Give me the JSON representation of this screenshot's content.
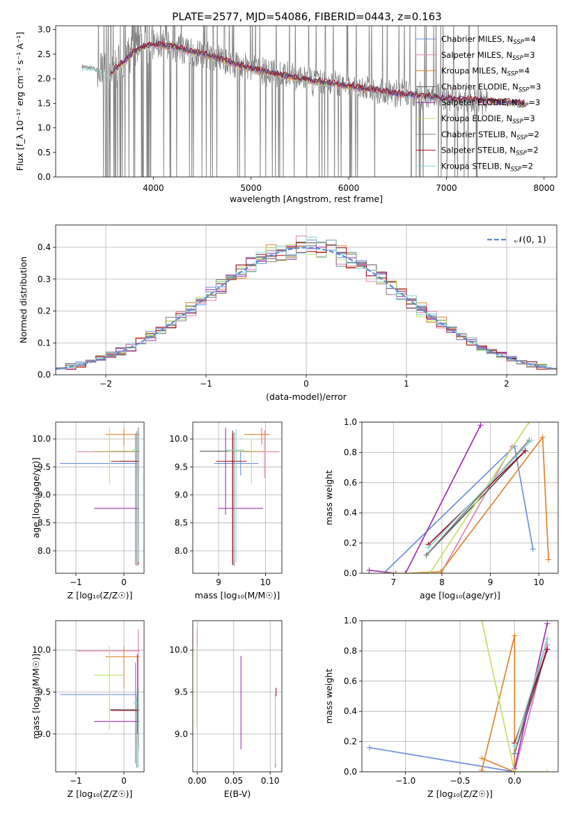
{
  "title": "PLATE=2577, MJD=54086, FIBERID=0443, z=0.163",
  "colors": {
    "chabrier_miles": "#6a8fe0",
    "salpeter_miles": "#e47fb3",
    "kroupa_miles": "#e1842a",
    "chabrier_elodie": "#555555",
    "salpeter_elodie": "#9d2fb0",
    "kroupa_elodie": "#bfe163",
    "chabrier_stelib": "#808080",
    "salpeter_stelib": "#a01020",
    "kroupa_stelib": "#86d4d0",
    "gaussian": "#5b8bd6",
    "data": "#808080",
    "grid": "#b0b0b0"
  },
  "chart_data": [
    {
      "id": "spectrum",
      "type": "line",
      "xlabel": "wavelength [Angstrom, rest frame]",
      "ylabel": "Flux [f_λ 10⁻¹⁷ erg cm⁻² s⁻¹ A⁻¹]",
      "xlim": [
        3000,
        8130
      ],
      "ylim": [
        0,
        3.08
      ],
      "xticks": [
        "4000",
        "5000",
        "6000",
        "7000",
        "8000"
      ],
      "yticks": [
        "0.0",
        "0.5",
        "1.0",
        "1.5",
        "2.0",
        "2.5",
        "3.0"
      ],
      "grid": false,
      "legend_position": "top-right",
      "legend": [
        {
          "label": "Chabrier MILES, N",
          "sub": "SSP",
          "tail": "=4",
          "color_key": "chabrier_miles"
        },
        {
          "label": "Salpeter MILES, N",
          "sub": "SSP",
          "tail": "=3",
          "color_key": "salpeter_miles"
        },
        {
          "label": "Kroupa MILES, N",
          "sub": "SSP",
          "tail": "=4",
          "color_key": "kroupa_miles"
        },
        {
          "label": "Chabrier ELODIE, N",
          "sub": "SSP",
          "tail": "=3",
          "color_key": "chabrier_elodie"
        },
        {
          "label": "Salpeter ELODIE, N",
          "sub": "SSP",
          "tail": "=3",
          "color_key": "salpeter_elodie"
        },
        {
          "label": "Kroupa ELODIE, N",
          "sub": "SSP",
          "tail": "=3",
          "color_key": "kroupa_elodie"
        },
        {
          "label": "Chabrier STELIB, N",
          "sub": "SSP",
          "tail": "=2",
          "color_key": "chabrier_stelib"
        },
        {
          "label": "Salpeter STELIB, N",
          "sub": "SSP",
          "tail": "=2",
          "color_key": "salpeter_stelib"
        },
        {
          "label": "Kroupa STELIB, N",
          "sub": "SSP",
          "tail": "=2",
          "color_key": "kroupa_stelib"
        }
      ],
      "continuum": {
        "x": [
          3270,
          3400,
          3550,
          3700,
          3800,
          3900,
          4000,
          4200,
          4400,
          4600,
          5000,
          5500,
          6000,
          6500,
          7000,
          7400,
          7800
        ],
        "y": [
          2.25,
          2.2,
          2.1,
          2.35,
          2.55,
          2.65,
          2.7,
          2.65,
          2.55,
          2.45,
          2.2,
          2.0,
          1.85,
          1.7,
          1.6,
          1.55,
          1.5
        ]
      },
      "noise_segment": [
        3430,
        7420
      ]
    },
    {
      "id": "residuals",
      "type": "line",
      "xlabel": "(data-model)/error",
      "ylabel": "Normed distribution",
      "xlim": [
        -2.5,
        2.5
      ],
      "ylim": [
        0,
        0.47
      ],
      "xticks": [
        "−2",
        "−1",
        "0",
        "1",
        "2"
      ],
      "xtick_values": [
        -2,
        -1,
        0,
        1,
        2
      ],
      "yticks": [
        "0.0",
        "0.1",
        "0.2",
        "0.3",
        "0.4"
      ],
      "ytick_values": [
        0,
        0.1,
        0.2,
        0.3,
        0.4
      ],
      "grid": true,
      "legend_position": "top-right",
      "legend": [
        {
          "label": "𝒩(0, 1)",
          "color_key": "gaussian"
        }
      ],
      "bin_width": 0.1
    },
    {
      "id": "age-vs-Z",
      "type": "scatter",
      "xlabel": "Z [log₁₀(Z/Z☉)]",
      "ylabel": "age  [log₁₀(age/yr)]",
      "xlim": [
        -1.42,
        0.42
      ],
      "ylim": [
        7.6,
        10.3
      ],
      "xticks": [
        "−1",
        "0"
      ],
      "xtick_values": [
        -1,
        0
      ],
      "yticks": [
        "8.0",
        "8.5",
        "9.0",
        "9.5",
        "10.0"
      ],
      "ytick_values": [
        8.0,
        8.5,
        9.0,
        9.5,
        10.0
      ],
      "grid": true
    },
    {
      "id": "age-vs-mass",
      "type": "scatter",
      "xlabel": "mass [log₁₀(M/M☉)]",
      "xlim": [
        8.45,
        10.35
      ],
      "ylim": [
        7.6,
        10.3
      ],
      "xticks": [
        "9",
        "10"
      ],
      "xtick_values": [
        9,
        10
      ],
      "yticks": [
        "8.0",
        "8.5",
        "9.0",
        "9.5",
        "10.0"
      ],
      "ytick_values": [
        8.0,
        8.5,
        9.0,
        9.5,
        10.0
      ],
      "grid": true
    },
    {
      "id": "massweight-vs-age",
      "type": "line",
      "xlabel": "age  [log₁₀(age/yr)]",
      "ylabel": "mass weight",
      "xlim": [
        6.35,
        10.4
      ],
      "ylim": [
        0,
        1
      ],
      "xticks": [
        "7",
        "8",
        "9",
        "10"
      ],
      "xtick_values": [
        7,
        8,
        9,
        10
      ],
      "yticks": [
        "0.0",
        "0.2",
        "0.4",
        "0.6",
        "0.8",
        "1.0"
      ],
      "ytick_values": [
        0,
        0.2,
        0.4,
        0.6,
        0.8,
        1.0
      ],
      "grid": true,
      "series": [
        {
          "color_key": "chabrier_miles",
          "x": [
            6.8,
            9.5,
            9.88
          ],
          "y": [
            0.0,
            0.84,
            0.16
          ]
        },
        {
          "color_key": "salpeter_miles",
          "x": [
            7.98,
            9.45
          ],
          "y": [
            0.0,
            0.84
          ]
        },
        {
          "color_key": "kroupa_miles",
          "x": [
            7.25,
            7.98,
            10.08,
            10.2
          ],
          "y": [
            0.0,
            0.01,
            0.9,
            0.09
          ]
        },
        {
          "color_key": "chabrier_elodie",
          "x": [
            7.68,
            9.72
          ],
          "y": [
            0.12,
            0.81
          ]
        },
        {
          "color_key": "salpeter_elodie",
          "x": [
            6.5,
            7.05,
            7.25,
            8.8
          ],
          "y": [
            0.02,
            0.0,
            0.0,
            0.98
          ]
        },
        {
          "color_key": "kroupa_elodie",
          "x": [
            6.8,
            7.75,
            9.8
          ],
          "y": [
            0.0,
            0.0,
            1.0
          ]
        },
        {
          "color_key": "chabrier_stelib",
          "x": [
            7.68,
            9.8
          ],
          "y": [
            0.12,
            0.88
          ]
        },
        {
          "color_key": "salpeter_stelib",
          "x": [
            7.72,
            9.72
          ],
          "y": [
            0.19,
            0.81
          ]
        },
        {
          "color_key": "kroupa_stelib",
          "x": [
            7.72,
            9.85
          ],
          "y": [
            0.17,
            0.88
          ]
        }
      ]
    },
    {
      "id": "mass-vs-Z",
      "type": "scatter",
      "xlabel": "Z [log₁₀(Z/Z☉)]",
      "ylabel": "mass [log₁₀(M/M☉)]",
      "xlim": [
        -1.42,
        0.42
      ],
      "ylim": [
        8.55,
        10.35
      ],
      "xticks": [
        "−1",
        "0"
      ],
      "xtick_values": [
        -1,
        0
      ],
      "yticks": [
        "9.0",
        "9.5",
        "10.0"
      ],
      "ytick_values": [
        9.0,
        9.5,
        10.0
      ],
      "grid": true
    },
    {
      "id": "mass-vs-EBV",
      "type": "scatter",
      "xlabel": "E(B-V)",
      "xlim": [
        -0.006,
        0.116
      ],
      "ylim": [
        8.55,
        10.35
      ],
      "xticks": [
        "0.00",
        "0.05",
        "0.10"
      ],
      "xtick_values": [
        0,
        0.05,
        0.1
      ],
      "yticks": [
        "9.0",
        "9.5",
        "10.0"
      ],
      "ytick_values": [
        9.0,
        9.5,
        10.0
      ],
      "grid": true
    },
    {
      "id": "massweight-vs-Z",
      "type": "line",
      "xlabel": "Z [log₁₀(Z/Z☉)]",
      "ylabel": "mass weight",
      "xlim": [
        -1.4,
        0.4
      ],
      "ylim": [
        0,
        1
      ],
      "xticks": [
        "−1.0",
        "−0.5",
        "0.0"
      ],
      "xtick_values": [
        -1.0,
        -0.5,
        0.0
      ],
      "yticks": [
        "0.0",
        "0.2",
        "0.4",
        "0.6",
        "0.8",
        "1.0"
      ],
      "ytick_values": [
        0,
        0.2,
        0.4,
        0.6,
        0.8,
        1.0
      ],
      "grid": true,
      "series": [
        {
          "color_key": "chabrier_miles",
          "x": [
            -1.33,
            0.0,
            0.3
          ],
          "y": [
            0.16,
            0.0,
            0.84
          ]
        },
        {
          "color_key": "salpeter_miles",
          "x": [
            0.0,
            0.3
          ],
          "y": [
            0.0,
            0.84
          ]
        },
        {
          "color_key": "kroupa_miles",
          "x": [
            -0.3,
            0.0,
            0.0,
            -0.3
          ],
          "y": [
            0.09,
            0.0,
            0.9,
            0.01
          ]
        },
        {
          "color_key": "chabrier_elodie",
          "x": [
            0.0,
            0.3
          ],
          "y": [
            0.12,
            0.81
          ]
        },
        {
          "color_key": "salpeter_elodie",
          "x": [
            0.0,
            0.3
          ],
          "y": [
            0.02,
            0.98
          ]
        },
        {
          "color_key": "kroupa_elodie",
          "x": [
            -0.3,
            0.0,
            0.3
          ],
          "y": [
            1.0,
            0.0,
            0.0
          ]
        },
        {
          "color_key": "chabrier_stelib",
          "x": [
            0.0,
            0.3
          ],
          "y": [
            0.12,
            0.88
          ]
        },
        {
          "color_key": "salpeter_stelib",
          "x": [
            0.0,
            0.3
          ],
          "y": [
            0.19,
            0.81
          ]
        },
        {
          "color_key": "kroupa_stelib",
          "x": [
            0.0,
            0.3
          ],
          "y": [
            0.17,
            0.88
          ]
        }
      ]
    }
  ]
}
